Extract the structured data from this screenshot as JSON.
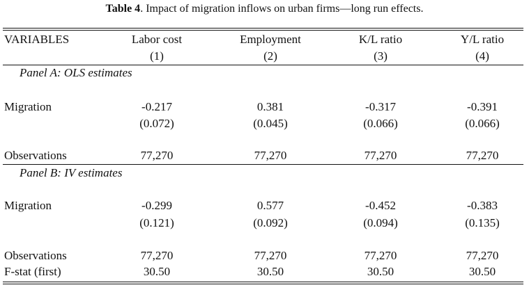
{
  "caption": {
    "label": "Table 4",
    "text": ". Impact of migration inflows on urban firms—long run effects."
  },
  "header": {
    "stub": "VARIABLES",
    "columns": [
      {
        "name": "Labor cost",
        "number": "(1)"
      },
      {
        "name": "Employment",
        "number": "(2)"
      },
      {
        "name": "K/L ratio",
        "number": "(3)"
      },
      {
        "name": "Y/L ratio",
        "number": "(4)"
      }
    ]
  },
  "panels": [
    {
      "title": "Panel A: OLS estimates",
      "migration": {
        "label": "Migration",
        "coef": [
          "-0.217",
          "0.381",
          "-0.317",
          "-0.391"
        ],
        "se": [
          "(0.072)",
          "(0.045)",
          "(0.066)",
          "(0.066)"
        ]
      },
      "observations": {
        "label": "Observations",
        "values": [
          "77,270",
          "77,270",
          "77,270",
          "77,270"
        ]
      }
    },
    {
      "title": "Panel B: IV estimates",
      "migration": {
        "label": "Migration",
        "coef": [
          "-0.299",
          "0.577",
          "-0.452",
          "-0.383"
        ],
        "se": [
          "(0.121)",
          "(0.092)",
          "(0.094)",
          "(0.135)"
        ]
      },
      "observations": {
        "label": "Observations",
        "values": [
          "77,270",
          "77,270",
          "77,270",
          "77,270"
        ]
      },
      "fstat": {
        "label": "F-stat (first)",
        "values": [
          "30.50",
          "30.50",
          "30.50",
          "30.50"
        ]
      }
    }
  ]
}
